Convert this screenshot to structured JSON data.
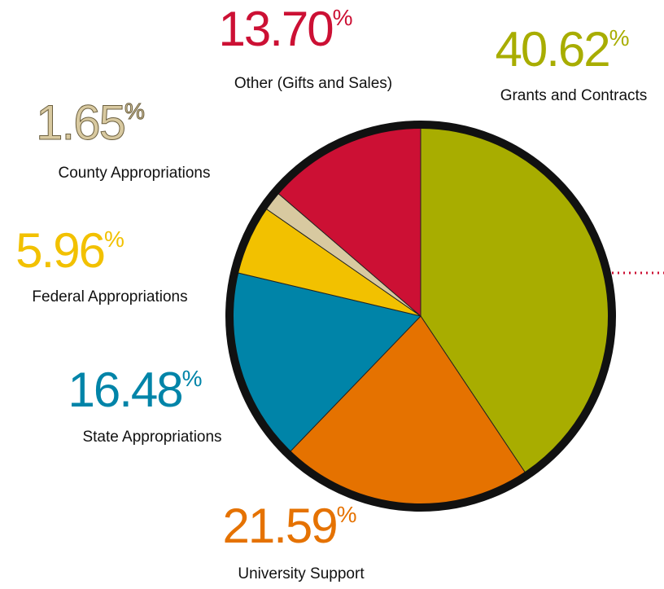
{
  "chart_data": {
    "type": "pie",
    "categories": [
      "Grants and Contracts",
      "University Support",
      "State Appropriations",
      "Federal Appropriations",
      "County Appropriations",
      "Other (Gifts and Sales)"
    ],
    "values": [
      40.62,
      21.59,
      16.48,
      5.96,
      1.65,
      13.7
    ],
    "value_labels": [
      "40.62%",
      "21.59%",
      "16.48%",
      "5.96%",
      "1.65%",
      "13.70%"
    ],
    "colors": [
      "#a8ad00",
      "#e57200",
      "#0084a8",
      "#f2c100",
      "#d8c9a0",
      "#cc1034"
    ]
  }
}
